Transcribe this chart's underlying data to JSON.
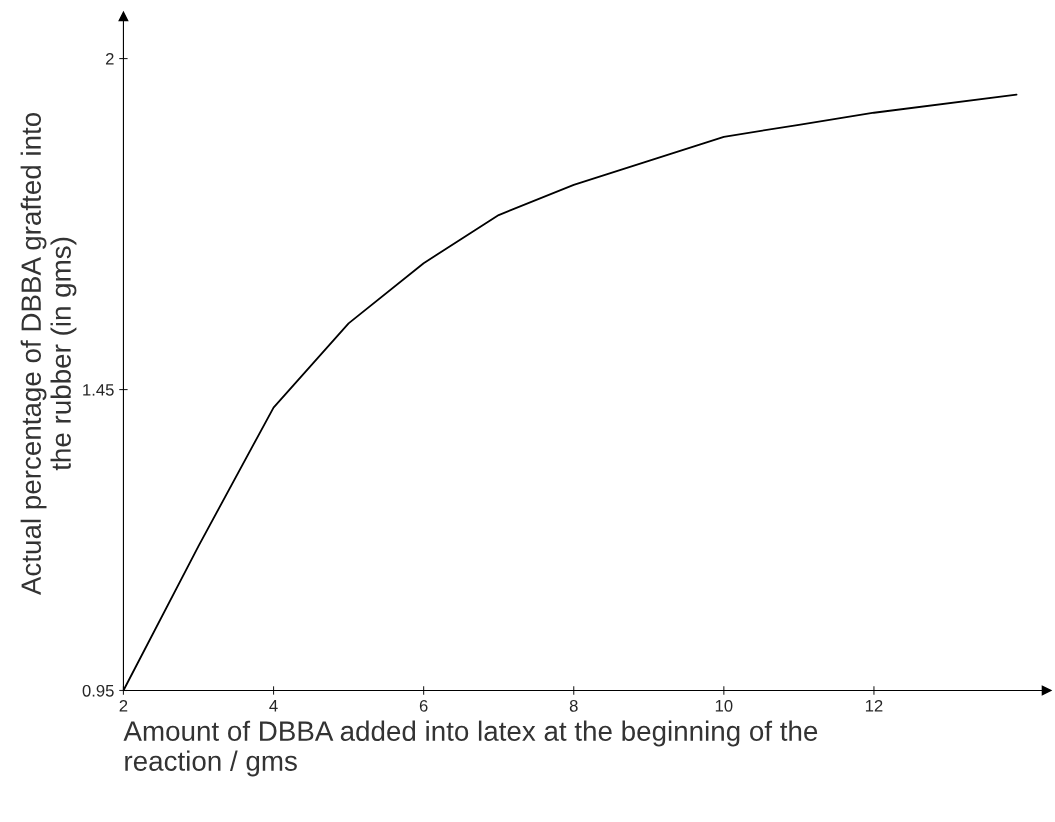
{
  "chart_data": {
    "type": "line",
    "xlabel": "Amount of DBBA added into latex at the beginning of the\nreaction / gms",
    "ylabel": "Actual percentage of DBBA grafted into\nthe rubber (in gms)",
    "x": [
      2,
      3,
      4,
      5,
      6,
      7,
      8,
      9,
      10,
      11,
      12,
      13.9
    ],
    "series": [
      {
        "color": "#000000",
        "values": [
          0.95,
          1.19,
          1.42,
          1.56,
          1.66,
          1.74,
          1.79,
          1.83,
          1.87,
          1.89,
          1.91,
          1.94
        ]
      }
    ],
    "xlim": [
      2,
      14.3
    ],
    "ylim": [
      0.95,
      2.07
    ],
    "xticks": [
      2,
      4,
      6,
      8,
      10,
      12
    ],
    "yticks": [
      0.95,
      1.45,
      2
    ],
    "grid": false,
    "marker": "none",
    "line_style": "solid"
  }
}
